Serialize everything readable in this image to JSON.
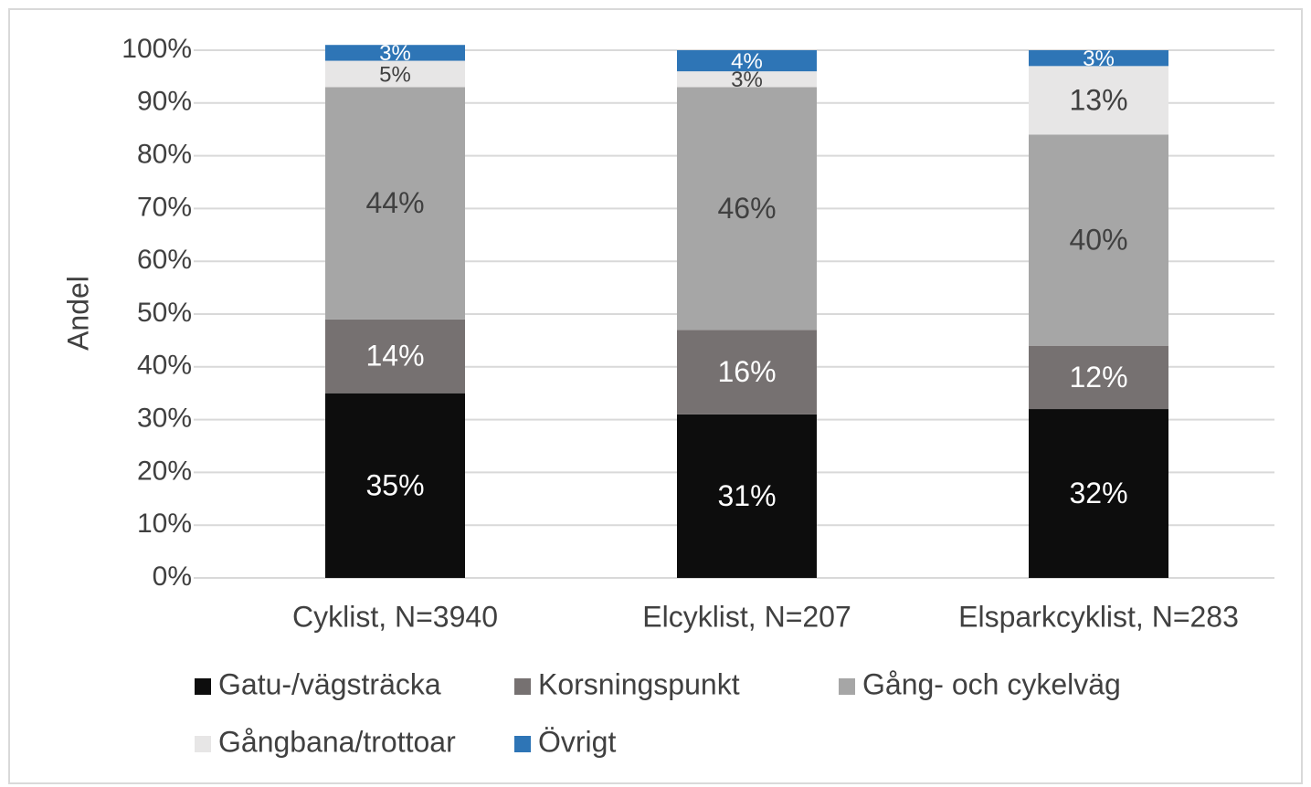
{
  "chart_data": {
    "type": "bar",
    "stacked": true,
    "y_axis_label": "Andel",
    "categories": [
      "Cyklist, N=3940",
      "Elcyklist, N=207",
      "Elsparkcyklist, N=283"
    ],
    "series": [
      {
        "name": "Gatu-/vägsträcka",
        "color": "#0d0d0d",
        "values": [
          35,
          31,
          32
        ],
        "value_labels": [
          "35%",
          "31%",
          "32%"
        ]
      },
      {
        "name": "Korsningspunkt",
        "color": "#767171",
        "values": [
          14,
          16,
          12
        ],
        "value_labels": [
          "14%",
          "16%",
          "12%"
        ]
      },
      {
        "name": "Gång- och cykelväg",
        "color": "#a6a6a6",
        "values": [
          44,
          46,
          40
        ],
        "value_labels": [
          "44%",
          "46%",
          "40%"
        ]
      },
      {
        "name": "Gångbana/trottoar",
        "color": "#e7e6e6",
        "values": [
          5,
          3,
          13
        ],
        "value_labels": [
          "5%",
          "3%",
          "13%"
        ]
      },
      {
        "name": "Övrigt",
        "color": "#2e75b6",
        "values": [
          3,
          4,
          3
        ],
        "value_labels": [
          "3%",
          "4%",
          "3%"
        ]
      }
    ],
    "ylim": [
      0,
      100
    ],
    "yticks": [
      {
        "value": 0,
        "label": "0%"
      },
      {
        "value": 10,
        "label": "10%"
      },
      {
        "value": 20,
        "label": "20%"
      },
      {
        "value": 30,
        "label": "30%"
      },
      {
        "value": 40,
        "label": "40%"
      },
      {
        "value": 50,
        "label": "50%"
      },
      {
        "value": 60,
        "label": "60%"
      },
      {
        "value": 70,
        "label": "70%"
      },
      {
        "value": 80,
        "label": "80%"
      },
      {
        "value": 90,
        "label": "90%"
      },
      {
        "value": 100,
        "label": "100%"
      }
    ],
    "grid": true,
    "legend": "bottom"
  }
}
